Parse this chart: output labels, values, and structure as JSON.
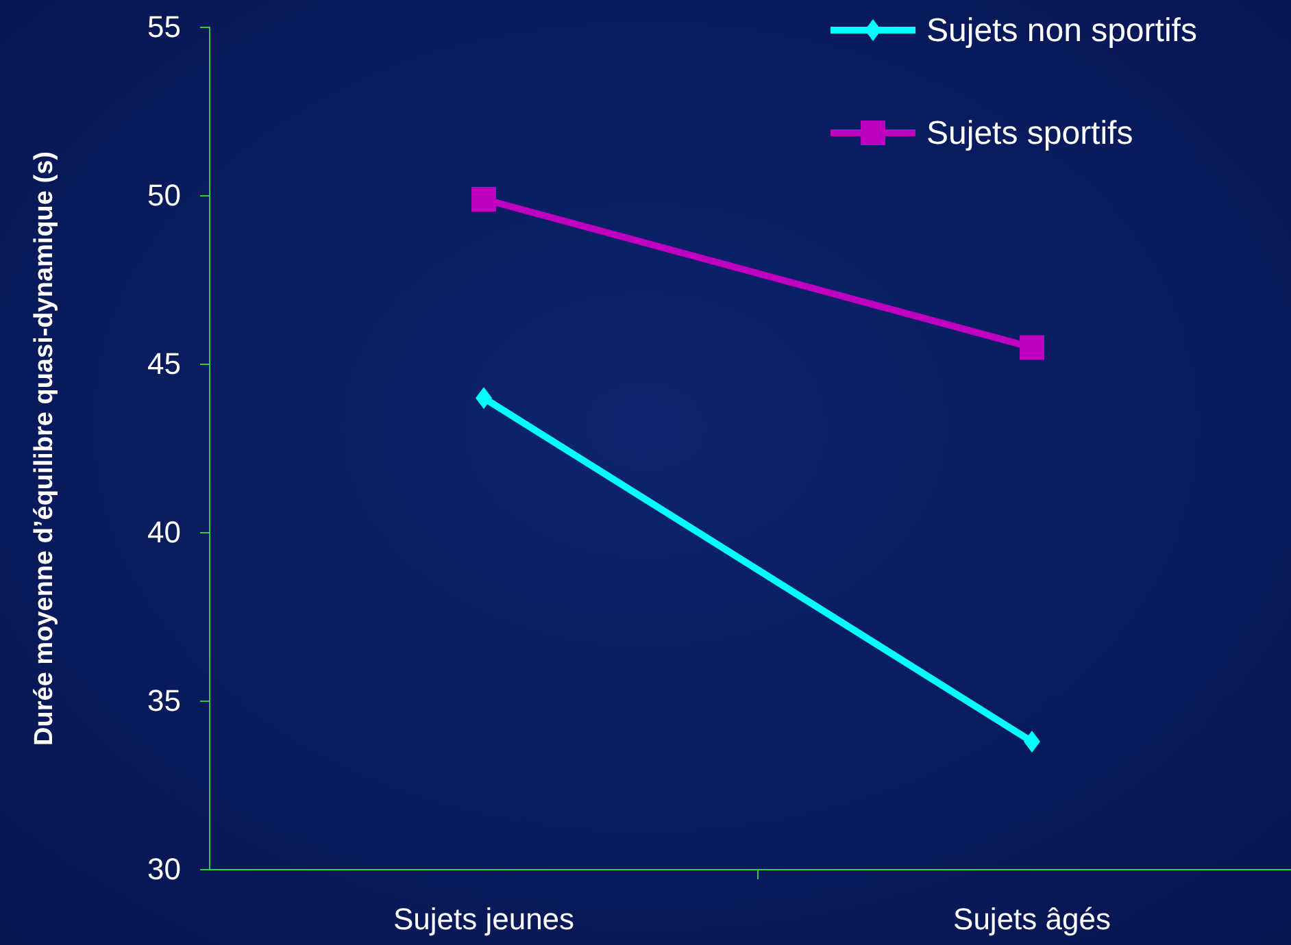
{
  "chart_data": {
    "type": "line",
    "ylabel": "Durée moyenne d’équilibre quasi-dynamique (s)",
    "categories": [
      "Sujets jeunes",
      "Sujets âgés"
    ],
    "ylim": [
      30,
      55
    ],
    "yticks": [
      30,
      35,
      40,
      45,
      50,
      55
    ],
    "grid": false,
    "legend": "top right",
    "series": [
      {
        "name": "Sujets non sportifs",
        "color": "#00ffff",
        "marker": "diamond",
        "values": [
          44.0,
          33.8
        ]
      },
      {
        "name": "Sujets sportifs",
        "color": "#c000c0",
        "marker": "square",
        "values": [
          49.9,
          45.5
        ]
      }
    ]
  }
}
